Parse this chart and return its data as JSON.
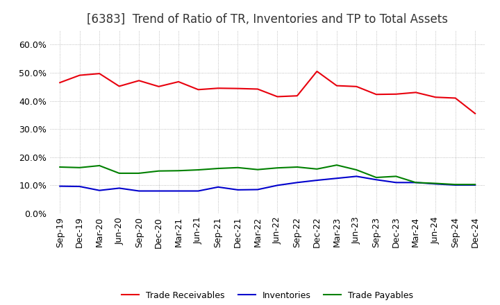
{
  "title": "[6383]  Trend of Ratio of TR, Inventories and TP to Total Assets",
  "x_labels": [
    "Sep-19",
    "Dec-19",
    "Mar-20",
    "Jun-20",
    "Sep-20",
    "Dec-20",
    "Mar-21",
    "Jun-21",
    "Sep-21",
    "Dec-21",
    "Mar-22",
    "Jun-22",
    "Sep-22",
    "Dec-22",
    "Mar-23",
    "Jun-23",
    "Sep-23",
    "Dec-23",
    "Mar-24",
    "Jun-24",
    "Sep-24",
    "Dec-24"
  ],
  "trade_receivables": [
    0.465,
    0.491,
    0.497,
    0.452,
    0.472,
    0.451,
    0.468,
    0.44,
    0.445,
    0.444,
    0.442,
    0.415,
    0.418,
    0.505,
    0.454,
    0.451,
    0.423,
    0.424,
    0.43,
    0.413,
    0.41,
    0.355
  ],
  "inventories": [
    0.097,
    0.096,
    0.082,
    0.09,
    0.08,
    0.08,
    0.08,
    0.08,
    0.094,
    0.084,
    0.085,
    0.1,
    0.11,
    0.118,
    0.125,
    0.132,
    0.12,
    0.11,
    0.11,
    0.105,
    0.101,
    0.101
  ],
  "trade_payables": [
    0.165,
    0.163,
    0.17,
    0.143,
    0.143,
    0.151,
    0.152,
    0.155,
    0.16,
    0.163,
    0.156,
    0.162,
    0.165,
    0.158,
    0.172,
    0.155,
    0.128,
    0.132,
    0.11,
    0.107,
    0.103,
    0.103
  ],
  "colors": {
    "trade_receivables": "#e8000d",
    "inventories": "#0000cd",
    "trade_payables": "#008000"
  },
  "ylim": [
    0.0,
    0.65
  ],
  "yticks": [
    0.0,
    0.1,
    0.2,
    0.3,
    0.4,
    0.5,
    0.6
  ],
  "background_color": "#ffffff",
  "grid_color": "#aaaaaa",
  "title_fontsize": 12,
  "tick_fontsize": 9,
  "legend_fontsize": 9
}
